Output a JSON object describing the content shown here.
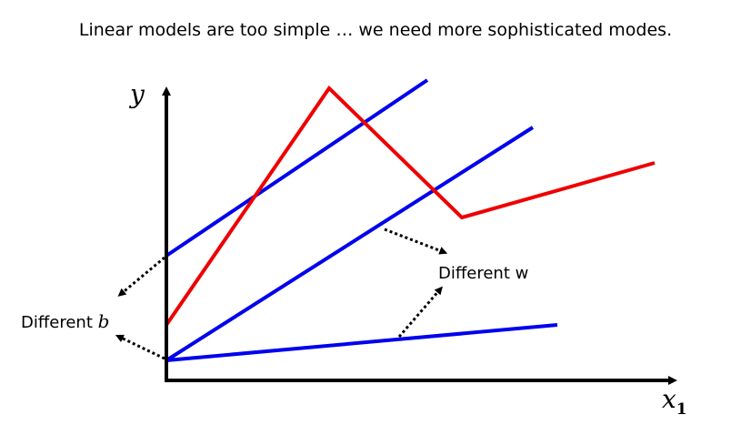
{
  "title": "Linear models are too simple … we need more sophisticated modes.",
  "axes": {
    "y_label": "y",
    "x_label": "x",
    "x_subscript": "1"
  },
  "annotations": {
    "different_w": "Different w",
    "different_b_prefix": "Different ",
    "different_b_var": "b"
  },
  "colors": {
    "axis": "#000000",
    "linear_model": "#0000ee",
    "piecewise_model": "#ee0000",
    "annotation_arrow": "#000000"
  }
}
